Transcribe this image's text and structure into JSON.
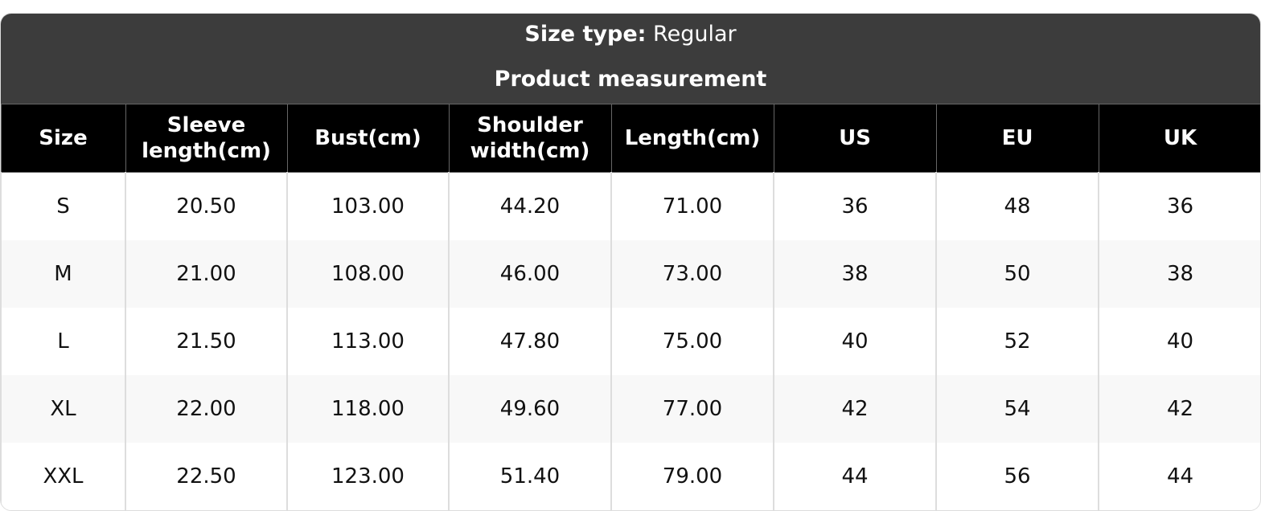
{
  "title": {
    "size_type_label": "Size type:",
    "size_type_value": "Regular",
    "subtitle": "Product measurement"
  },
  "table": {
    "headers": [
      "Size",
      "Sleeve length(cm)",
      "Bust(cm)",
      "Shoulder width(cm)",
      "Length(cm)",
      "US",
      "EU",
      "UK"
    ],
    "rows": [
      [
        "S",
        "20.50",
        "103.00",
        "44.20",
        "71.00",
        "36",
        "48",
        "36"
      ],
      [
        "M",
        "21.00",
        "108.00",
        "46.00",
        "73.00",
        "38",
        "50",
        "38"
      ],
      [
        "L",
        "21.50",
        "113.00",
        "47.80",
        "75.00",
        "40",
        "52",
        "40"
      ],
      [
        "XL",
        "22.00",
        "118.00",
        "49.60",
        "77.00",
        "42",
        "54",
        "42"
      ],
      [
        "XXL",
        "22.50",
        "123.00",
        "51.40",
        "79.00",
        "44",
        "56",
        "44"
      ]
    ]
  }
}
